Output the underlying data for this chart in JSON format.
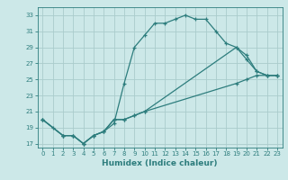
{
  "title": "",
  "xlabel": "Humidex (Indice chaleur)",
  "bg_color": "#cce8e8",
  "grid_color": "#aacccc",
  "line_color": "#2d7d7d",
  "xlim": [
    -0.5,
    23.5
  ],
  "ylim": [
    16.5,
    34.0
  ],
  "xticks": [
    0,
    1,
    2,
    3,
    4,
    5,
    6,
    7,
    8,
    9,
    10,
    11,
    12,
    13,
    14,
    15,
    16,
    17,
    18,
    19,
    20,
    21,
    22,
    23
  ],
  "yticks": [
    17,
    19,
    21,
    23,
    25,
    27,
    29,
    31,
    33
  ],
  "line1_x": [
    0,
    1,
    2,
    3,
    4,
    5,
    6,
    7,
    8,
    9,
    10,
    11,
    12,
    13,
    14,
    15,
    16,
    17,
    18,
    19,
    20,
    21,
    22,
    23
  ],
  "line1_y": [
    20,
    19,
    18,
    18,
    17,
    18,
    18.5,
    19.5,
    24.5,
    29,
    30.5,
    32,
    32,
    32.5,
    33,
    32.5,
    32.5,
    31,
    29.5,
    29,
    28,
    26,
    25.5,
    25.5
  ],
  "line2_x": [
    0,
    2,
    3,
    4,
    5,
    6,
    7,
    8,
    9,
    10,
    19,
    20,
    21,
    22,
    23
  ],
  "line2_y": [
    20,
    18,
    18,
    17,
    18,
    18.5,
    20,
    20,
    20.5,
    21,
    29,
    27.5,
    26,
    25.5,
    25.5
  ],
  "line3_x": [
    0,
    2,
    3,
    4,
    5,
    6,
    7,
    8,
    9,
    10,
    19,
    20,
    21,
    22,
    23
  ],
  "line3_y": [
    20,
    18,
    18,
    17,
    18,
    18.5,
    20,
    20,
    20.5,
    21,
    24.5,
    25,
    25.5,
    25.5,
    25.5
  ]
}
